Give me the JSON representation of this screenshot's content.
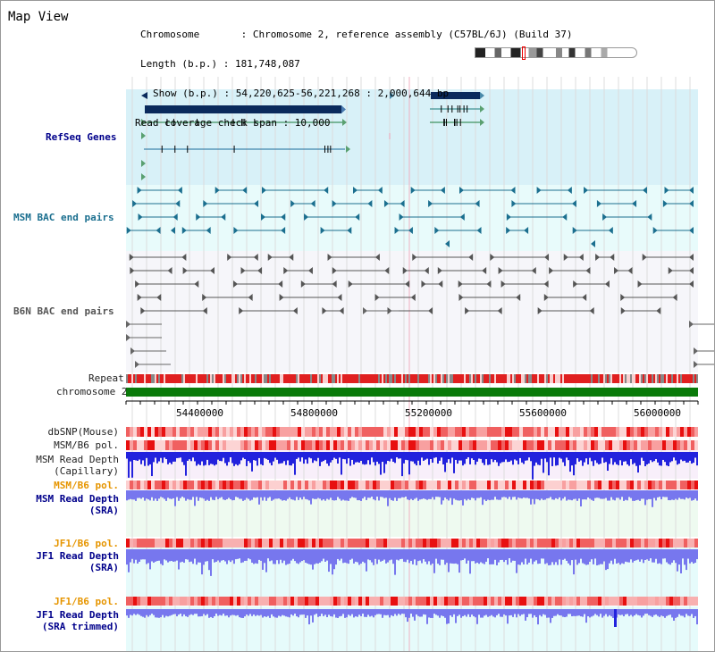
{
  "title": "Map View",
  "info": {
    "chromosome": "Chromosome       : Chromosome 2, reference assembly (C57BL/6J) (Build 37)",
    "length": "Length (b.p.) : 181,748,087",
    "show": "Show (b.p.) : 54,220,625-56,221,268 : 2,000,644 bp",
    "span": "Read coverage check span : 10,000"
  },
  "tracks": {
    "refseq": "RefSeq Genes",
    "msm_bac": "MSM BAC end pairs",
    "b6n_bac": "B6N BAC end pairs",
    "repeat": "Repeat",
    "chromosome": "chromosome 2",
    "dbsnp": "dbSNP(Mouse)",
    "msm_pol": "MSM/B6 pol.",
    "msm_depth_cap_1": "MSM Read Depth",
    "msm_depth_cap_2": "(Capillary)",
    "msm_pol2": "MSM/B6 pol.",
    "msm_depth_sra_1": "MSM Read Depth",
    "msm_depth_sra_2": "(SRA)",
    "jf1_pol": "JF1/B6 pol.",
    "jf1_depth_sra_1": "JF1 Read Depth",
    "jf1_depth_sra_2": "(SRA)",
    "jf1_pol2": "JF1/B6 pol.",
    "jf1_depth_trim_1": "JF1 Read Depth",
    "jf1_depth_trim_2": "(SRA trimmed)"
  },
  "axis_ticks": [
    "54400000",
    "54800000",
    "55200000",
    "55600000",
    "56000000"
  ],
  "colors": {
    "refseq_bg": "#d8f1f8",
    "bac_bg": "#e6fbfb",
    "b6n_bg": "#f7f7fb",
    "chromosome_bar": "#0a7a0a",
    "gene_dark": "#0a2a5c",
    "depth_blue": "#2222dd",
    "depth_light": "#7777ee",
    "pol_red": "#ee2222"
  }
}
